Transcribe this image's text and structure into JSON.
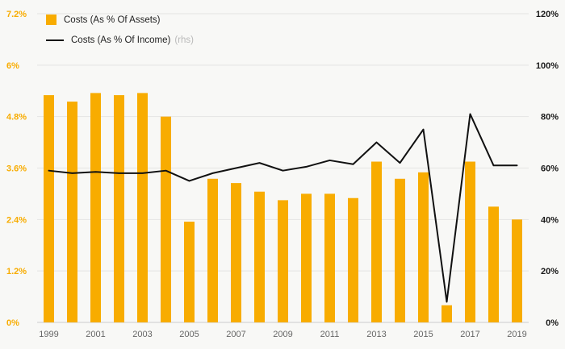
{
  "chart_data": {
    "type": "bar",
    "combo": "bar+line",
    "title": "",
    "categories": [
      "1999",
      "2000",
      "2001",
      "2002",
      "2003",
      "2004",
      "2005",
      "2006",
      "2007",
      "2008",
      "2009",
      "2010",
      "2011",
      "2012",
      "2013",
      "2014",
      "2015",
      "2016",
      "2017",
      "2018",
      "2019"
    ],
    "series": [
      {
        "name": "Costs (As % Of Assets)",
        "type": "bar",
        "axis": "left",
        "color": "#F8AC00",
        "values": [
          5.3,
          5.15,
          5.35,
          5.3,
          5.35,
          4.8,
          2.35,
          3.35,
          3.25,
          3.05,
          2.85,
          3.0,
          3.0,
          2.9,
          3.75,
          3.35,
          3.5,
          0.4,
          3.75,
          2.7,
          2.4
        ]
      },
      {
        "name": "Costs (As % Of Income)",
        "type": "line",
        "axis": "right",
        "color": "#111111",
        "values": [
          59,
          58,
          58.5,
          58,
          58,
          59,
          55,
          58,
          60,
          62,
          59,
          60.5,
          63,
          61.5,
          70,
          62,
          75,
          8,
          81,
          61,
          61
        ]
      }
    ],
    "left_axis": {
      "min": 0,
      "max": 7.2,
      "tick_values": [
        0,
        1.2,
        2.4,
        3.6,
        4.8,
        6,
        7.2
      ],
      "ticks": [
        "0%",
        "1.2%",
        "2.4%",
        "3.6%",
        "4.8%",
        "6%",
        "7.2%"
      ],
      "color": "#F8AC00"
    },
    "right_axis": {
      "min": 0,
      "max": 120,
      "tick_values": [
        0,
        20,
        40,
        60,
        80,
        100,
        120
      ],
      "ticks": [
        "0%",
        "20%",
        "40%",
        "60%",
        "80%",
        "100%",
        "120%"
      ],
      "color": "#1a1a1a"
    },
    "x_tick_labels": [
      "1999",
      "2001",
      "2003",
      "2005",
      "2007",
      "2009",
      "2011",
      "2013",
      "2015",
      "2017",
      "2019"
    ],
    "grid": true,
    "legend_position": "top-left",
    "background": "#f8f8f6"
  },
  "legend": {
    "assets_label": "Costs (As % Of Assets)",
    "income_label": "Costs (As % Of Income)",
    "income_suffix": "(rhs)"
  }
}
